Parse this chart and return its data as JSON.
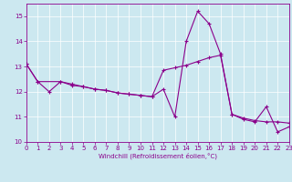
{
  "xlabel": "Windchill (Refroidissement éolien,°C)",
  "xlim": [
    0,
    23
  ],
  "ylim": [
    10,
    15.5
  ],
  "yticks": [
    10,
    11,
    12,
    13,
    14,
    15
  ],
  "xticks": [
    0,
    1,
    2,
    3,
    4,
    5,
    6,
    7,
    8,
    9,
    10,
    11,
    12,
    13,
    14,
    15,
    16,
    17,
    18,
    19,
    20,
    21,
    22,
    23
  ],
  "bg_color": "#cce8f0",
  "line_color": "#8b008b",
  "series1_x": [
    0,
    1,
    2,
    3,
    4,
    5,
    6,
    7,
    8,
    9,
    10,
    11,
    12,
    13,
    14,
    15,
    16,
    17,
    18,
    19,
    20,
    21,
    22,
    23
  ],
  "series1_y": [
    13.1,
    12.4,
    12.0,
    12.4,
    12.25,
    12.2,
    12.1,
    12.05,
    11.95,
    11.9,
    11.85,
    11.8,
    12.1,
    11.0,
    14.0,
    15.2,
    14.7,
    13.5,
    11.1,
    10.9,
    10.8,
    11.4,
    10.4,
    10.6
  ],
  "series2_x": [
    0,
    1,
    3,
    4,
    5,
    6,
    7,
    8,
    9,
    10,
    11,
    12,
    13,
    14,
    15,
    16,
    17,
    18,
    19,
    20,
    21,
    22,
    23
  ],
  "series2_y": [
    13.1,
    12.4,
    12.4,
    12.3,
    12.2,
    12.1,
    12.05,
    11.95,
    11.9,
    11.85,
    11.8,
    12.85,
    12.95,
    13.05,
    13.2,
    13.35,
    13.45,
    11.1,
    10.95,
    10.85,
    10.8,
    10.8,
    10.75
  ]
}
